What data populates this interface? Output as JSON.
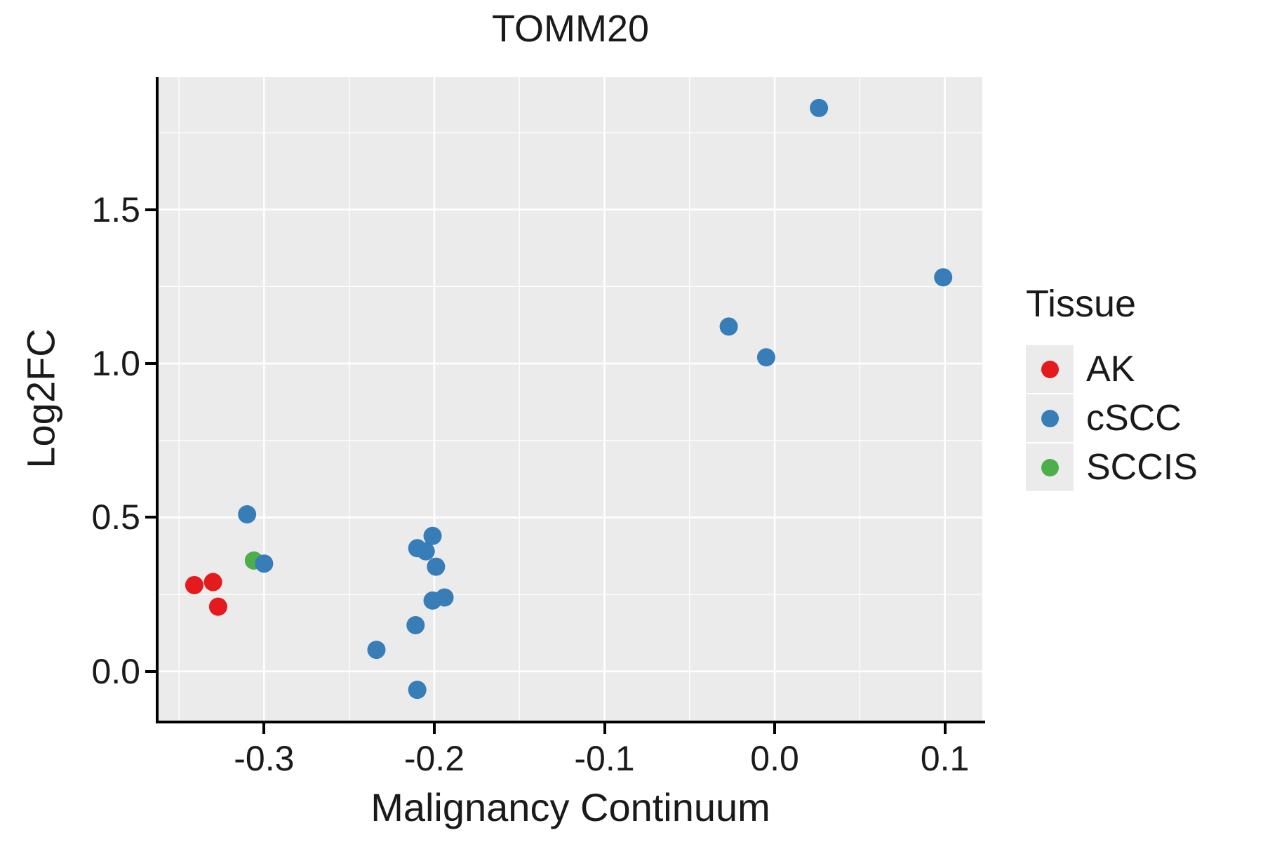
{
  "chart_data": {
    "type": "scatter",
    "title": "TOMM20",
    "xlabel": "Malignancy Continuum",
    "ylabel": "Log2FC",
    "x_range": [
      -0.362,
      0.122
    ],
    "y_range": [
      -0.16,
      1.93
    ],
    "x_ticks": [
      -0.3,
      -0.2,
      -0.1,
      0.0,
      0.1
    ],
    "x_tick_labels": [
      "-0.3",
      "-0.2",
      "-0.1",
      "0.0",
      "0.1"
    ],
    "x_minor_ticks": [
      -0.35,
      -0.25,
      -0.15,
      -0.05,
      0.05
    ],
    "y_ticks": [
      0.0,
      0.5,
      1.0,
      1.5
    ],
    "y_tick_labels": [
      "0.0",
      "0.5",
      "1.0",
      "1.5"
    ],
    "y_minor_ticks": [
      0.25,
      0.75,
      1.25,
      1.75
    ],
    "grid": true,
    "panel_background": "#ebebeb",
    "gridline_color": "#ffffff",
    "point_radius": 13,
    "legend": {
      "title": "Tissue",
      "position": "right",
      "items": [
        {
          "label": "AK",
          "color": "#e41a1c"
        },
        {
          "label": "cSCC",
          "color": "#377eb8"
        },
        {
          "label": "SCCIS",
          "color": "#4daf4a"
        }
      ]
    },
    "series": [
      {
        "name": "AK",
        "color": "#e41a1c",
        "points": [
          [
            -0.341,
            0.28
          ],
          [
            -0.33,
            0.29
          ],
          [
            -0.327,
            0.21
          ]
        ]
      },
      {
        "name": "SCCIS",
        "color": "#4daf4a",
        "points": [
          [
            -0.306,
            0.36
          ]
        ]
      },
      {
        "name": "cSCC",
        "color": "#377eb8",
        "points": [
          [
            -0.31,
            0.51
          ],
          [
            -0.3,
            0.35
          ],
          [
            -0.234,
            0.07
          ],
          [
            -0.211,
            0.15
          ],
          [
            -0.21,
            0.4
          ],
          [
            -0.205,
            0.39
          ],
          [
            -0.201,
            0.44
          ],
          [
            -0.199,
            0.34
          ],
          [
            -0.201,
            0.23
          ],
          [
            -0.194,
            0.24
          ],
          [
            -0.21,
            -0.06
          ],
          [
            -0.027,
            1.12
          ],
          [
            -0.005,
            1.02
          ],
          [
            0.026,
            1.83
          ],
          [
            0.099,
            1.28
          ]
        ]
      }
    ]
  }
}
